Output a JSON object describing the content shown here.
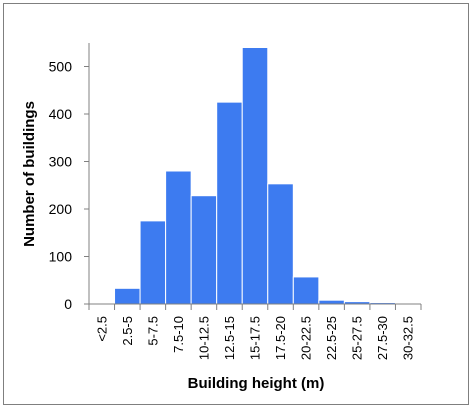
{
  "chart_data": {
    "type": "bar",
    "title": "",
    "xlabel": "Building height (m)",
    "ylabel": "Number of buildings",
    "categories": [
      "<2.5",
      "2.5-5",
      "5-7.5",
      "7.5-10",
      "10-12.5",
      "12.5-15",
      "15-17.5",
      "17.5-20",
      "20-22.5",
      "22.5-25",
      "25-27.5",
      "27.5-30",
      "30-32.5"
    ],
    "values": [
      2,
      33,
      175,
      280,
      228,
      425,
      540,
      253,
      57,
      8,
      5,
      3,
      1
    ],
    "yticks": [
      "0",
      "100",
      "200",
      "300",
      "400",
      "500"
    ],
    "ylim": [
      0,
      600
    ],
    "grid": false,
    "legend": "none",
    "bar_color": "#3d7bf0",
    "bar_edge_color": "#ffffff"
  }
}
